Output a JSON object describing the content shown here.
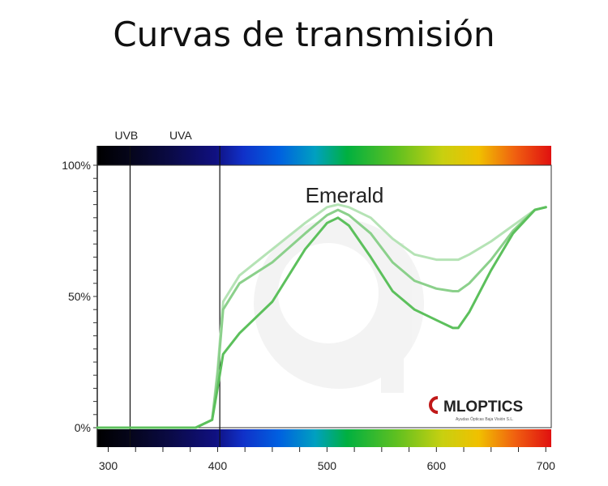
{
  "page": {
    "title": "Curvas de transmisión"
  },
  "chart_data": {
    "type": "line",
    "title": "Emerald",
    "xlim": [
      290,
      705
    ],
    "ylim": [
      0,
      100
    ],
    "x_ticks": [
      300,
      400,
      500,
      600,
      700
    ],
    "y_ticks": [
      {
        "value": 0,
        "label": "0%"
      },
      {
        "value": 50,
        "label": "50%"
      },
      {
        "value": 100,
        "label": "100%"
      }
    ],
    "region_labels": [
      {
        "label": "UVB",
        "x": 300
      },
      {
        "label": "UVA",
        "x": 350
      }
    ],
    "divider_lines_x": [
      320,
      402
    ],
    "colors": {
      "dark": "#5cc05c",
      "medium": "#8bd08b",
      "light": "#b5e3b5"
    },
    "series": [
      {
        "color": "dark",
        "x": [
          290,
          380,
          395,
          400,
          405,
          420,
          450,
          480,
          500,
          510,
          520,
          540,
          560,
          580,
          600,
          615,
          620,
          630,
          650,
          670,
          690,
          700
        ],
        "y": [
          0,
          0,
          3,
          15,
          28,
          36,
          48,
          68,
          78,
          80,
          77,
          65,
          52,
          45,
          41,
          38,
          38,
          44,
          60,
          74,
          83,
          84
        ]
      },
      {
        "color": "medium",
        "x": [
          290,
          380,
          395,
          400,
          405,
          420,
          450,
          480,
          500,
          510,
          520,
          540,
          560,
          580,
          600,
          615,
          620,
          630,
          650,
          670,
          690,
          700
        ],
        "y": [
          0,
          0,
          3,
          20,
          45,
          55,
          63,
          74,
          81,
          83,
          81,
          74,
          63,
          56,
          53,
          52,
          52,
          55,
          64,
          75,
          83,
          84
        ]
      },
      {
        "color": "light",
        "x": [
          290,
          380,
          395,
          400,
          405,
          420,
          450,
          480,
          500,
          510,
          520,
          540,
          560,
          580,
          600,
          615,
          620,
          630,
          650,
          670,
          690,
          700
        ],
        "y": [
          0,
          0,
          3,
          22,
          48,
          58,
          68,
          78,
          84,
          85,
          84,
          80,
          72,
          66,
          64,
          64,
          64,
          66,
          71,
          77,
          83,
          84
        ]
      }
    ],
    "logo": {
      "brand": "MLOPTICS",
      "tagline": "Ayudas Ópticas Baja Visión S.L."
    }
  }
}
